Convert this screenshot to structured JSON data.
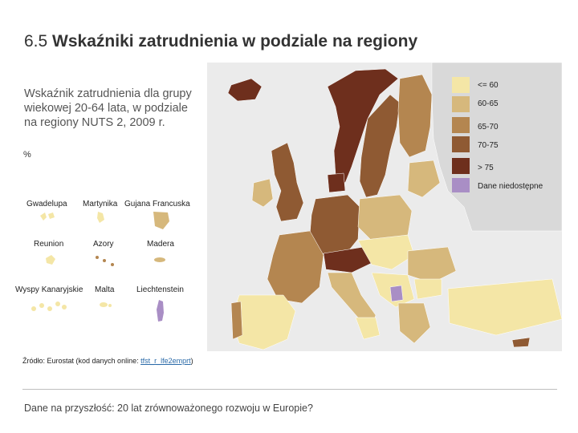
{
  "title": {
    "number": "6.5",
    "text": "Wskaźniki zatrudnienia w podziale na regiony"
  },
  "subtitle": "Wskaźnik zatrudnienia dla grupy wiekowej 20-64 lata, w podziale na regiony NUTS 2, 2009 r.",
  "unit": "%",
  "legend": [
    {
      "label": "<= 60",
      "color": "#f4e6a6"
    },
    {
      "label": "60-65",
      "color": "#d6b87c"
    },
    {
      "label": "65-70",
      "color": "#b48650"
    },
    {
      "label": "70-75",
      "color": "#8f5a33"
    },
    {
      "label": "> 75",
      "color": "#6e2f1d"
    },
    {
      "label": "Dane niedostępne",
      "color": "#a98ec5"
    }
  ],
  "insets": [
    "Gwadelupa",
    "Martynika",
    "Gujana Francuska",
    "Reunion",
    "Azory",
    "Madera",
    "Wyspy Kanaryjskie",
    "Malta",
    "Liechtenstein"
  ],
  "source": {
    "prefix": "Źródło: Eurostat (kod danych online: ",
    "link": "tfst_r_lfe2emprt",
    "suffix": ")"
  },
  "footer": "Dane na przyszłość: 20 lat zrównoważonego rozwoju w Europie?"
}
